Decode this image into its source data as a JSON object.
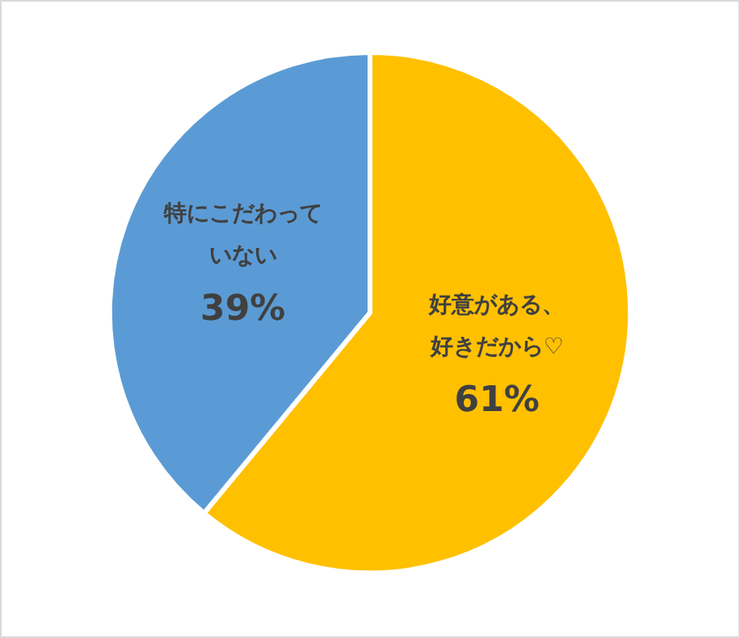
{
  "chart_data": {
    "type": "pie",
    "categories": [
      "好意がある、好きだから♡",
      "特にこだわっていない"
    ],
    "values": [
      61,
      39
    ],
    "colors": [
      "#ffc000",
      "#5b9bd5"
    ],
    "value_labels": [
      "61%",
      "39%"
    ],
    "legend": false
  }
}
